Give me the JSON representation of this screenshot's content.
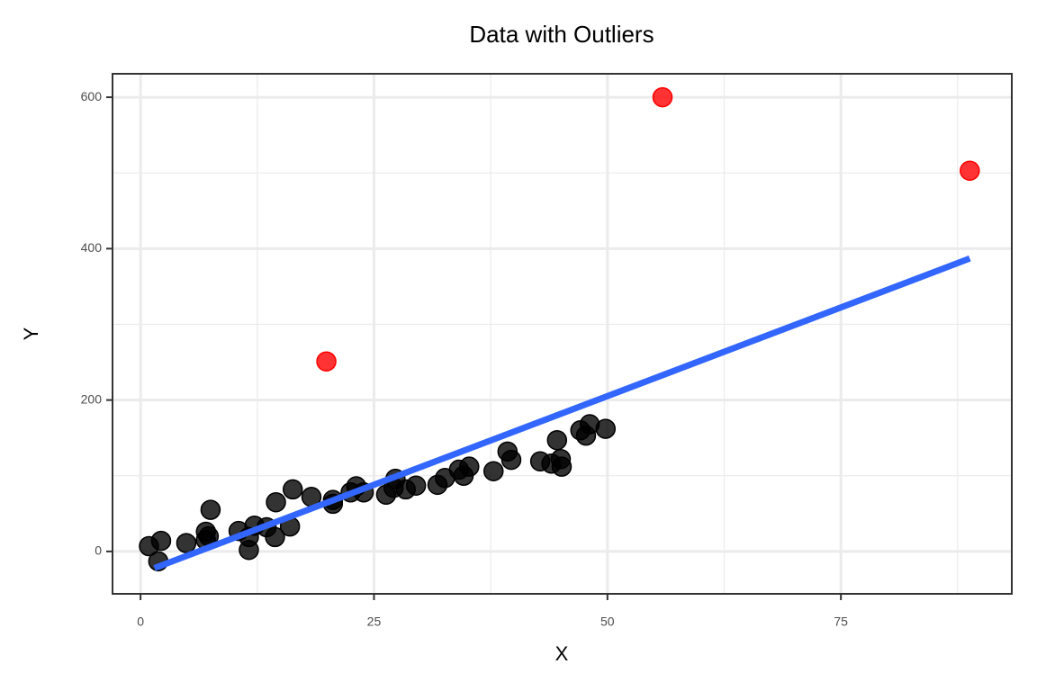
{
  "chart_data": {
    "type": "scatter",
    "title": "Data with Outliers",
    "x_label": "X",
    "y_label": "Y",
    "xlim": [
      -3,
      93.3
    ],
    "ylim": [
      -56,
      631
    ],
    "xticks": [
      0,
      25,
      50,
      75
    ],
    "yticks": [
      0,
      200,
      400,
      600
    ],
    "x_minor_ticks": [
      12.5,
      37.5,
      62.5,
      87.5
    ],
    "y_minor_ticks": [
      100,
      300,
      500
    ],
    "grid": true,
    "series": [
      {
        "color": "#000000",
        "x": [
          0.9,
          2.2,
          1.9,
          4.9,
          7,
          7,
          7.3,
          7.5,
          10.5,
          11.6,
          11.6,
          12.2,
          13.5,
          14.4,
          14.5,
          16,
          16.3,
          18.3,
          20.6,
          20.6,
          22.5,
          23.1,
          23.9,
          26.3,
          27.3,
          27.1,
          28.4,
          29.5,
          31.8,
          32.6,
          34.1,
          34.6,
          35.2,
          37.8,
          39.3,
          39.7,
          42.8,
          44,
          44.6,
          45,
          45.1,
          47.1,
          47.7,
          48.1,
          49.8
        ],
        "y": [
          7,
          14,
          -13,
          11,
          26,
          15,
          20,
          55,
          27,
          2,
          19,
          34,
          32,
          19,
          65,
          33,
          82,
          72,
          68,
          63,
          78,
          86,
          78,
          75,
          96,
          84,
          82,
          87,
          88,
          97,
          108,
          100,
          112,
          106,
          132,
          121,
          119,
          116,
          147,
          122,
          112,
          160,
          153,
          168,
          162
        ]
      },
      {
        "color": "#ff0000",
        "x": [
          19.9,
          55.9,
          88.8
        ],
        "y": [
          251,
          600,
          503
        ]
      }
    ],
    "fit_line": {
      "color": "#3366ff",
      "x": [
        1.5,
        88.8
      ],
      "y": [
        -22,
        387
      ]
    }
  }
}
